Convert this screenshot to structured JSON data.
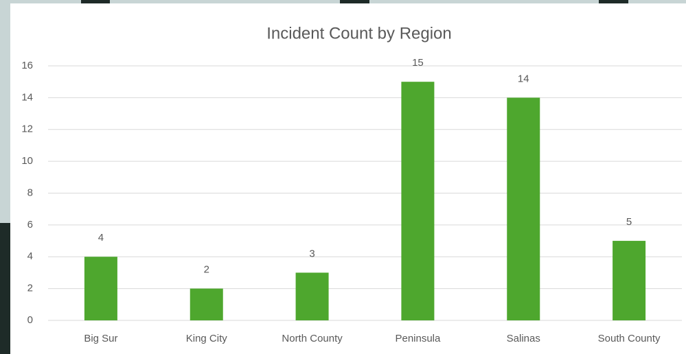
{
  "chart_data": {
    "type": "bar",
    "title": "Incident Count by Region",
    "categories": [
      "Big Sur",
      "King City",
      "North County",
      "Peninsula",
      "Salinas",
      "South County"
    ],
    "values": [
      4,
      2,
      3,
      15,
      14,
      5
    ],
    "color": "#4ea72e",
    "ylim": [
      0,
      16
    ],
    "yticks": [
      0,
      2,
      4,
      6,
      8,
      10,
      12,
      14,
      16
    ],
    "grid": true
  }
}
